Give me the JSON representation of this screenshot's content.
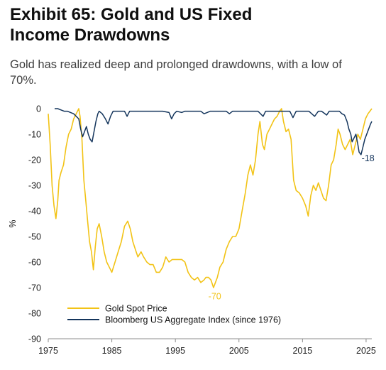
{
  "header": {
    "title": "Exhibit 65: Gold and US Fixed Income Drawdowns",
    "subtitle": "Gold has realized deep and prolonged drawdowns, with a low of 70%."
  },
  "chart_data": {
    "type": "line",
    "ylabel": "%",
    "xlim": [
      1975,
      2025.9
    ],
    "ylim": [
      -90,
      0
    ],
    "x_ticks": [
      1975,
      1985,
      1995,
      2005,
      2015,
      2025
    ],
    "y_ticks": [
      0,
      -10,
      -20,
      -30,
      -40,
      -50,
      -60,
      -70,
      -80,
      -90
    ],
    "grid": false,
    "legend_position": "bottom-left",
    "annotations": [
      {
        "text": "-70",
        "x": 2001.2,
        "y": -73.5,
        "series": "Gold Spot Price"
      },
      {
        "text": "-18",
        "x": 2024.3,
        "y": -19.5,
        "series": "Bloomberg US Aggregate Index (since 1976)"
      }
    ],
    "series": [
      {
        "name": "Gold Spot Price",
        "color": "#f2c316",
        "x": [
          1975.0,
          1975.3,
          1975.6,
          1975.9,
          1976.2,
          1976.5,
          1976.7,
          1977.0,
          1977.4,
          1977.8,
          1978.2,
          1978.6,
          1979.0,
          1979.4,
          1979.8,
          1980.0,
          1980.3,
          1980.6,
          1980.9,
          1981.2,
          1981.5,
          1981.8,
          1982.1,
          1982.4,
          1982.7,
          1983.0,
          1983.4,
          1983.8,
          1984.2,
          1984.6,
          1985.0,
          1985.5,
          1986.0,
          1986.5,
          1987.0,
          1987.5,
          1987.9,
          1988.3,
          1988.7,
          1989.1,
          1989.6,
          1990.0,
          1990.5,
          1991.0,
          1991.5,
          1992.0,
          1992.5,
          1993.0,
          1993.5,
          1994.0,
          1994.5,
          1995.0,
          1995.5,
          1996.0,
          1996.5,
          1997.0,
          1997.5,
          1998.0,
          1998.5,
          1999.0,
          1999.5,
          1999.8,
          2000.2,
          2000.6,
          2001.0,
          2001.3,
          2001.6,
          2002.0,
          2002.5,
          2003.0,
          2003.5,
          2004.0,
          2004.5,
          2005.0,
          2005.5,
          2006.0,
          2006.4,
          2006.8,
          2007.2,
          2007.6,
          2008.0,
          2008.3,
          2008.7,
          2009.0,
          2009.4,
          2009.8,
          2010.2,
          2010.6,
          2011.0,
          2011.4,
          2011.7,
          2012.0,
          2012.4,
          2012.8,
          2013.2,
          2013.6,
          2014.0,
          2014.5,
          2015.0,
          2015.5,
          2015.9,
          2016.3,
          2016.7,
          2017.1,
          2017.5,
          2017.9,
          2018.3,
          2018.7,
          2019.1,
          2019.5,
          2019.9,
          2020.3,
          2020.6,
          2020.9,
          2021.3,
          2021.7,
          2022.1,
          2022.5,
          2022.9,
          2023.3,
          2023.7,
          2024.1,
          2024.5,
          2024.9,
          2025.3,
          2025.6,
          2025.9
        ],
        "values": [
          -2,
          -14,
          -30,
          -38,
          -43,
          -36,
          -28,
          -25,
          -22,
          -15,
          -10,
          -8,
          -4,
          -2,
          0,
          -3,
          -12,
          -28,
          -36,
          -44,
          -52,
          -56,
          -63,
          -54,
          -47,
          -45,
          -50,
          -56,
          -60,
          -62,
          -64,
          -60,
          -56,
          -52,
          -46,
          -44,
          -47,
          -52,
          -55,
          -58,
          -56,
          -58,
          -60,
          -61,
          -61,
          -64,
          -64,
          -62,
          -58,
          -60,
          -59,
          -59,
          -59,
          -59,
          -60,
          -64,
          -66,
          -67,
          -66,
          -68,
          -67,
          -66,
          -66,
          -67,
          -70,
          -68,
          -66,
          -62,
          -60,
          -55,
          -52,
          -50,
          -50,
          -47,
          -40,
          -33,
          -26,
          -22,
          -26,
          -20,
          -10,
          -5,
          -14,
          -16,
          -10,
          -8,
          -6,
          -4,
          -3,
          -1,
          0,
          -5,
          -9,
          -8,
          -12,
          -28,
          -32,
          -33,
          -35,
          -38,
          -42,
          -34,
          -30,
          -32,
          -29,
          -32,
          -35,
          -36,
          -30,
          -22,
          -20,
          -14,
          -8,
          -10,
          -14,
          -16,
          -14,
          -12,
          -18,
          -14,
          -10,
          -12,
          -8,
          -4,
          -2,
          -1,
          0
        ]
      },
      {
        "name": "Bloomberg US Aggregate Index (since 1976)",
        "color": "#14355c",
        "x": [
          1976.0,
          1976.5,
          1977.0,
          1977.5,
          1978.0,
          1978.5,
          1979.0,
          1979.4,
          1979.8,
          1980.1,
          1980.4,
          1980.7,
          1981.0,
          1981.3,
          1981.6,
          1981.9,
          1982.2,
          1982.5,
          1982.8,
          1983.0,
          1983.5,
          1984.0,
          1984.4,
          1984.8,
          1985.2,
          1986.0,
          1987.0,
          1987.4,
          1987.8,
          1988.3,
          1989.0,
          1990.0,
          1990.5,
          1991.0,
          1992.0,
          1993.0,
          1994.0,
          1994.4,
          1994.8,
          1995.2,
          1996.0,
          1996.5,
          1997.0,
          1998.0,
          1999.0,
          1999.5,
          2000.0,
          2000.5,
          2001.0,
          2002.0,
          2003.0,
          2003.5,
          2004.0,
          2004.5,
          2005.0,
          2006.0,
          2007.0,
          2008.0,
          2008.8,
          2009.2,
          2010.0,
          2011.0,
          2012.0,
          2013.0,
          2013.5,
          2014.0,
          2015.0,
          2016.0,
          2016.9,
          2017.5,
          2018.0,
          2018.8,
          2019.2,
          2020.0,
          2020.8,
          2021.2,
          2021.6,
          2022.0,
          2022.3,
          2022.6,
          2022.8,
          2023.0,
          2023.4,
          2023.7,
          2023.9,
          2024.2,
          2024.5,
          2024.8,
          2025.1,
          2025.4,
          2025.7,
          2025.9
        ],
        "values": [
          0,
          0,
          -0.5,
          -1,
          -1,
          -1.5,
          -2,
          -3,
          -4,
          -8,
          -11,
          -9,
          -7,
          -10,
          -12,
          -13,
          -9,
          -5,
          -2,
          -1,
          -2,
          -4,
          -6,
          -3,
          -1,
          -1,
          -1,
          -3,
          -1,
          -1,
          -1,
          -1,
          -1,
          -1,
          -1,
          -1,
          -1.5,
          -4,
          -2,
          -1,
          -1.5,
          -1,
          -1,
          -1,
          -1,
          -2,
          -1.5,
          -1,
          -1,
          -1,
          -1,
          -2,
          -1,
          -1,
          -1,
          -1,
          -1,
          -1,
          -3,
          -1,
          -1,
          -1,
          -1,
          -1,
          -3.5,
          -1,
          -1,
          -1,
          -3,
          -1,
          -1,
          -2.5,
          -1,
          -1,
          -1,
          -2,
          -2.5,
          -5,
          -8,
          -10,
          -13,
          -12,
          -10,
          -14,
          -17,
          -18,
          -15,
          -12,
          -10,
          -8,
          -6,
          -5
        ]
      }
    ]
  }
}
